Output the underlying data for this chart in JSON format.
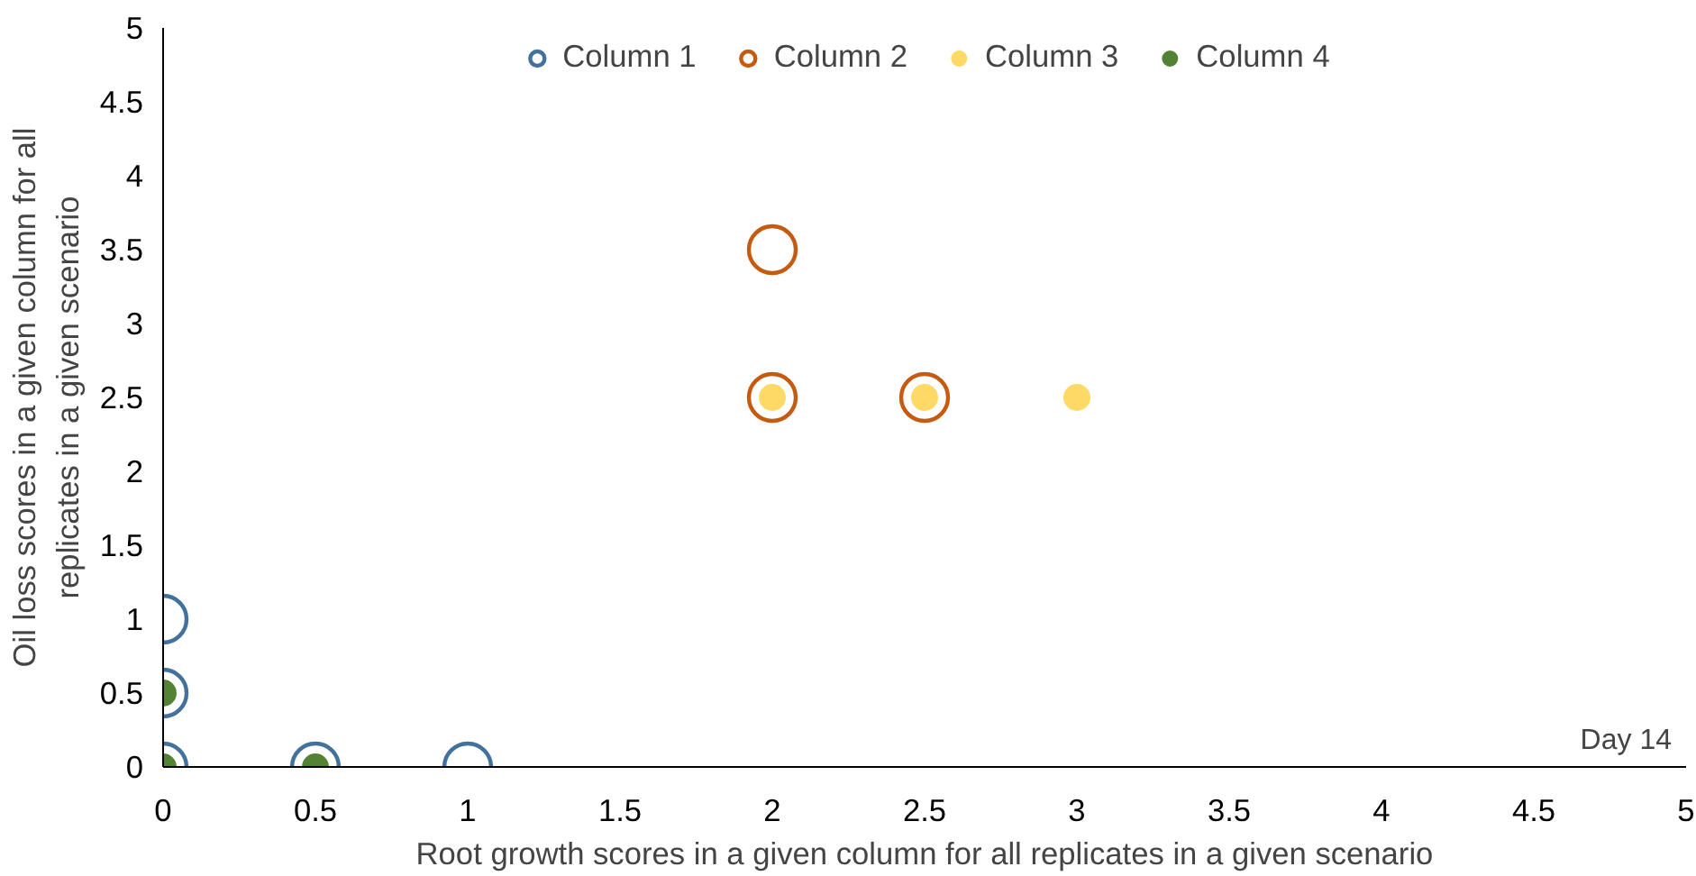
{
  "chart_data": {
    "type": "scatter",
    "xlabel": "Root growth scores in a given column for all replicates in a given scenario",
    "ylabel": "Oil loss scores in a given column for all\nreplicates in a given scenario",
    "annotations": [
      "Day 14"
    ],
    "xlim": [
      0,
      5
    ],
    "ylim": [
      0,
      5
    ],
    "xticks": [
      0,
      0.5,
      1,
      1.5,
      2,
      2.5,
      3,
      3.5,
      4,
      4.5,
      5
    ],
    "yticks": [
      0,
      0.5,
      1,
      1.5,
      2,
      2.5,
      3,
      3.5,
      4,
      4.5,
      5
    ],
    "grid": false,
    "legend": "top",
    "marker": "circle",
    "series": [
      {
        "name": "Column 1",
        "type": "bubble",
        "color": "#41719c",
        "x": [
          0,
          0,
          0,
          0.5,
          1
        ],
        "values": [
          1,
          0.5,
          0,
          0,
          0
        ],
        "sizes": [
          1,
          1,
          1,
          1,
          1
        ]
      },
      {
        "name": "Column 2",
        "type": "bubble",
        "color": "#c55a11",
        "x": [
          2,
          2,
          2.5
        ],
        "values": [
          3.5,
          2.5,
          2.5
        ],
        "sizes": [
          1,
          1,
          1
        ]
      },
      {
        "name": "Column 3",
        "color": "#ffd966",
        "x": [
          2,
          2.5,
          3
        ],
        "values": [
          2.5,
          2.5,
          2.5
        ]
      },
      {
        "name": "Column 4",
        "color": "#548235",
        "x": [
          0,
          0,
          0.5
        ],
        "values": [
          0.5,
          0,
          0
        ]
      }
    ]
  }
}
